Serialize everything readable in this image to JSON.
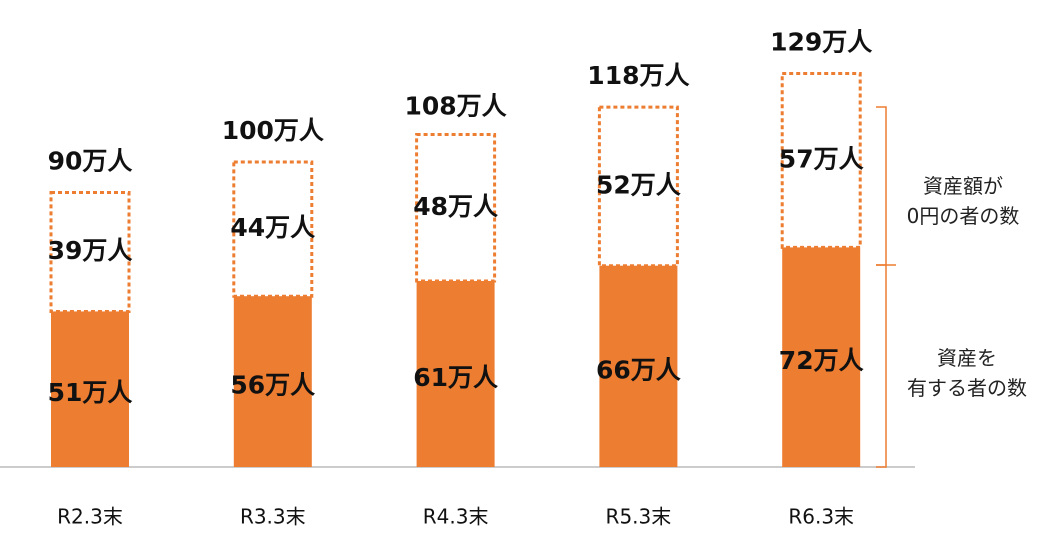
{
  "chart_data": {
    "type": "stacked-bar",
    "categories": [
      "R2.3末",
      "R3.3末",
      "R4.3末",
      "R5.3末",
      "R6.3末"
    ],
    "series": [
      {
        "name": "資産を\n有する者の数",
        "color": "#ed7d31",
        "dashed": false,
        "values": [
          51,
          56,
          61,
          66,
          72
        ],
        "value_labels": [
          "51万人",
          "56万人",
          "61万人",
          "66万人",
          "72万人"
        ]
      },
      {
        "name": "資産額が\n0円の者の数",
        "color": "#ed7d31",
        "dashed": true,
        "values": [
          39,
          44,
          48,
          52,
          57
        ],
        "value_labels": [
          "39万人",
          "44万人",
          "48万人",
          "52万人",
          "57万人"
        ]
      }
    ],
    "totals": [
      90,
      100,
      108,
      118,
      129
    ],
    "total_labels": [
      "90万人",
      "100万人",
      "108万人",
      "118万人",
      "129万人"
    ]
  }
}
